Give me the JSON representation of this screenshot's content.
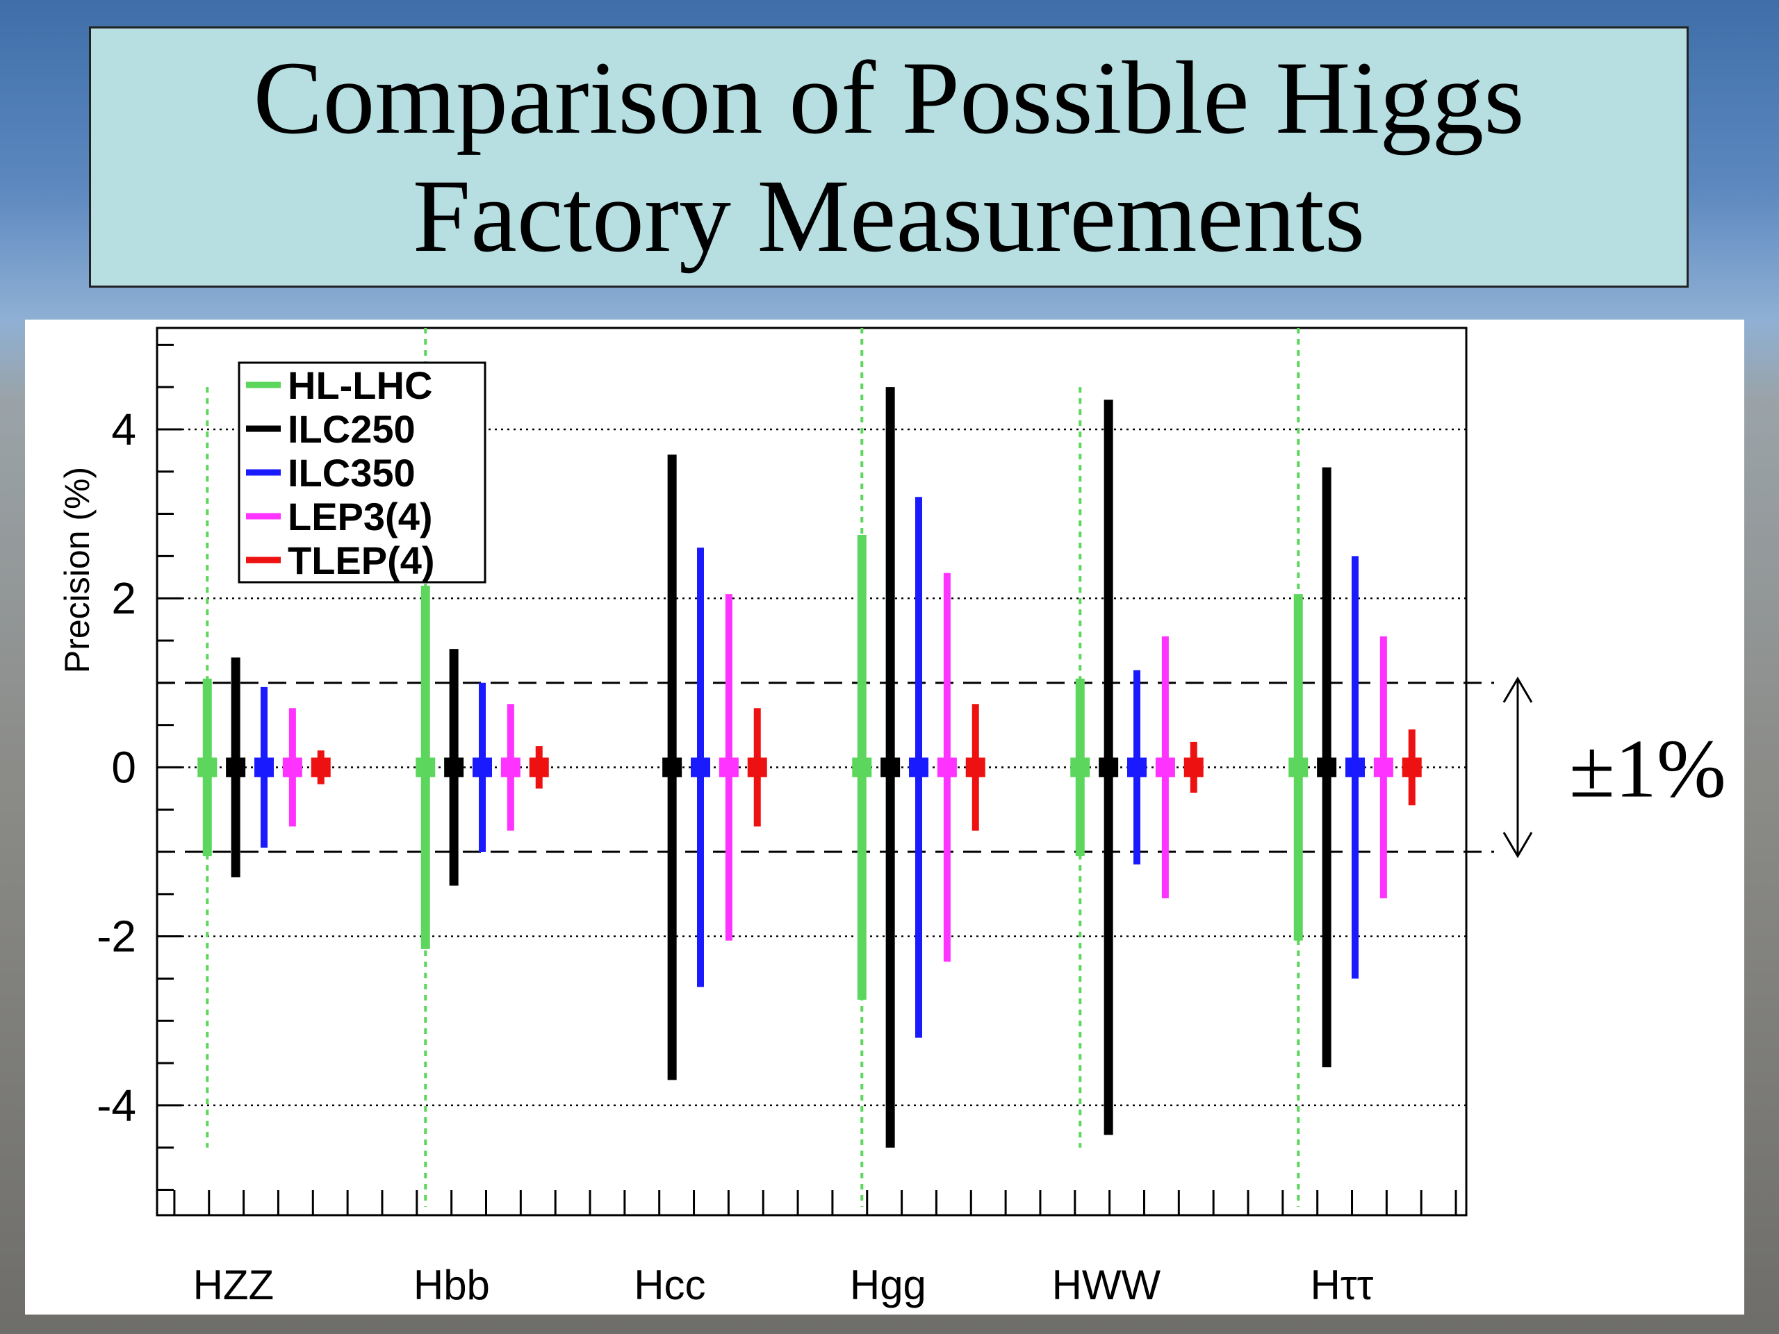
{
  "slide": {
    "title_lines": [
      "Comparison of Possible Higgs",
      "Factory Measurements"
    ]
  },
  "annotation": {
    "text": "±1%",
    "band": [
      -1,
      1
    ]
  },
  "chart_data": {
    "type": "errorbar",
    "ylabel": "Precision (%)",
    "xlabel": "",
    "ylim": [
      -5.3,
      5.2
    ],
    "yticks": [
      -4,
      -2,
      0,
      2,
      4
    ],
    "categories": [
      "HZZ",
      "Hbb",
      "Hcc",
      "Hgg",
      "HWW",
      "Hττ"
    ],
    "legend_position": "top-left",
    "grid": "dotted horizontal at major ticks",
    "series": [
      {
        "name": "HL-LHC",
        "color": "#5cd65c",
        "values": [
          1.05,
          2.15,
          null,
          2.75,
          1.05,
          2.05
        ]
      },
      {
        "name": "ILC250",
        "color": "#000000",
        "values": [
          1.3,
          1.4,
          3.7,
          4.5,
          4.35,
          3.55
        ]
      },
      {
        "name": "ILC350",
        "color": "#1a1aff",
        "values": [
          0.95,
          1.0,
          2.6,
          3.2,
          1.15,
          2.5
        ]
      },
      {
        "name": "LEP3(4)",
        "color": "#ff33ff",
        "values": [
          0.7,
          0.75,
          2.05,
          2.3,
          1.55,
          1.55
        ]
      },
      {
        "name": "TLEP(4)",
        "color": "#ee1111",
        "values": [
          0.2,
          0.25,
          0.7,
          0.75,
          0.3,
          0.45
        ]
      }
    ],
    "hl_lhc_dotted_extent": [
      4.5,
      5.2,
      null,
      5.2,
      4.5,
      5.2
    ]
  }
}
